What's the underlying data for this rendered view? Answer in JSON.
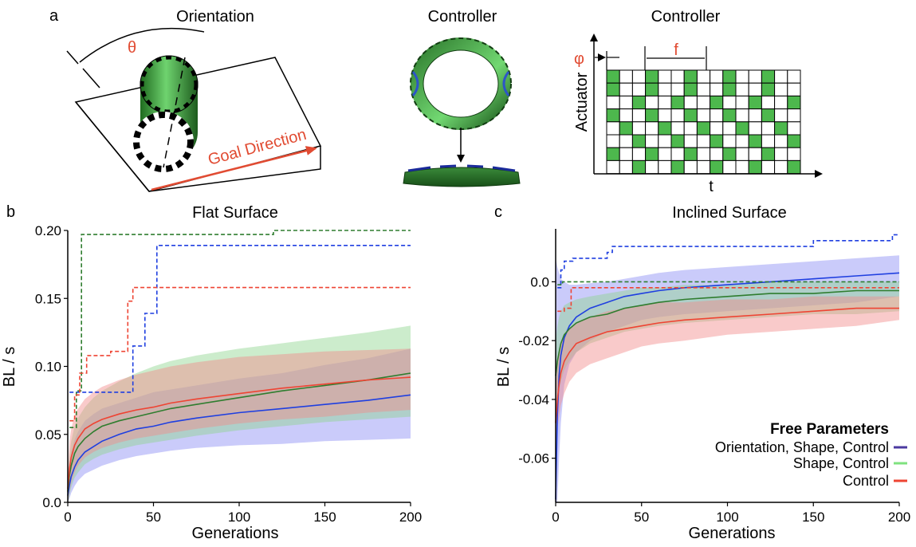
{
  "panel_a": {
    "label": "a",
    "orientation": {
      "title": "Orientation",
      "angle_symbol": "θ",
      "goal_label": "Goal Direction"
    },
    "controller_shape": {
      "title": "Controller"
    },
    "controller_grid": {
      "title": "Controller",
      "phase_symbol": "φ",
      "freq_symbol": "f",
      "ylabel": "Actuator",
      "xlabel": "t"
    }
  },
  "colors": {
    "blue": "#1f3fe0",
    "green": "#2f7d2f",
    "red": "#ee4433",
    "blue_band": "#8a8cf5",
    "green_band": "#8fd48f",
    "red_band": "#f28a8a",
    "grid_green": "#4db84d",
    "accent_red": "#e14b32",
    "legend_blue": "#4b3aa0",
    "legend_green": "#7fe27f",
    "legend_red": "#ee4433"
  },
  "legend": {
    "title": "Free Parameters",
    "entries": [
      "Orientation, Shape, Control",
      "Shape, Control",
      "Control"
    ]
  },
  "chart_data": [
    {
      "panel": "b",
      "type": "line",
      "title": "Flat Surface",
      "xlabel": "Generations",
      "ylabel": "BL / s",
      "xlim": [
        0,
        200
      ],
      "ylim": [
        0,
        0.2
      ],
      "xticks": [
        0,
        50,
        100,
        150,
        200
      ],
      "yticks": [
        0,
        0.05,
        0.1,
        0.15,
        0.2
      ],
      "ytick_labels": [
        "0.0",
        "0.05",
        "0.10",
        "0.15",
        "0.20"
      ],
      "series": [
        {
          "key": "blue",
          "kind": "mean",
          "x": [
            0,
            1,
            2,
            4,
            6,
            10,
            15,
            20,
            30,
            40,
            50,
            60,
            75,
            100,
            125,
            150,
            175,
            200
          ],
          "y": [
            0.005,
            0.013,
            0.019,
            0.026,
            0.031,
            0.037,
            0.041,
            0.045,
            0.05,
            0.054,
            0.056,
            0.059,
            0.062,
            0.066,
            0.069,
            0.072,
            0.075,
            0.079
          ],
          "lo": [
            0.0,
            0.003,
            0.007,
            0.012,
            0.016,
            0.021,
            0.024,
            0.027,
            0.031,
            0.034,
            0.036,
            0.038,
            0.04,
            0.042,
            0.043,
            0.045,
            0.046,
            0.047
          ],
          "hi": [
            0.012,
            0.028,
            0.037,
            0.046,
            0.052,
            0.06,
            0.065,
            0.069,
            0.073,
            0.077,
            0.081,
            0.083,
            0.086,
            0.091,
            0.095,
            0.101,
            0.106,
            0.113
          ]
        },
        {
          "key": "green",
          "kind": "mean",
          "x": [
            0,
            1,
            2,
            4,
            6,
            10,
            15,
            20,
            30,
            40,
            50,
            60,
            75,
            100,
            125,
            150,
            175,
            200
          ],
          "y": [
            0.008,
            0.02,
            0.027,
            0.036,
            0.041,
            0.047,
            0.052,
            0.056,
            0.06,
            0.063,
            0.066,
            0.069,
            0.072,
            0.077,
            0.082,
            0.086,
            0.09,
            0.095
          ],
          "lo": [
            0.0,
            0.005,
            0.011,
            0.018,
            0.022,
            0.028,
            0.032,
            0.035,
            0.039,
            0.042,
            0.044,
            0.046,
            0.049,
            0.053,
            0.056,
            0.059,
            0.061,
            0.063
          ],
          "hi": [
            0.016,
            0.035,
            0.045,
            0.056,
            0.062,
            0.07,
            0.077,
            0.082,
            0.089,
            0.095,
            0.1,
            0.104,
            0.108,
            0.113,
            0.117,
            0.121,
            0.125,
            0.13
          ]
        },
        {
          "key": "red",
          "kind": "mean",
          "x": [
            0,
            1,
            2,
            4,
            6,
            10,
            15,
            20,
            30,
            40,
            50,
            60,
            75,
            100,
            125,
            150,
            175,
            200
          ],
          "y": [
            0.01,
            0.025,
            0.033,
            0.042,
            0.047,
            0.054,
            0.058,
            0.061,
            0.065,
            0.068,
            0.07,
            0.073,
            0.076,
            0.08,
            0.084,
            0.087,
            0.09,
            0.092
          ],
          "lo": [
            0.0,
            0.008,
            0.014,
            0.022,
            0.027,
            0.033,
            0.037,
            0.04,
            0.044,
            0.047,
            0.049,
            0.051,
            0.054,
            0.058,
            0.061,
            0.063,
            0.066,
            0.068
          ],
          "hi": [
            0.02,
            0.045,
            0.054,
            0.064,
            0.069,
            0.076,
            0.081,
            0.085,
            0.09,
            0.094,
            0.097,
            0.1,
            0.103,
            0.107,
            0.109,
            0.111,
            0.112,
            0.113
          ]
        },
        {
          "key": "blue",
          "kind": "max",
          "step": true,
          "x": [
            1,
            38,
            38,
            45,
            45,
            52,
            52,
            200
          ],
          "y": [
            0.081,
            0.081,
            0.115,
            0.115,
            0.139,
            0.139,
            0.189,
            0.189
          ]
        },
        {
          "key": "green",
          "kind": "max",
          "step": true,
          "x": [
            1,
            5,
            5,
            8,
            8,
            120,
            120,
            200
          ],
          "y": [
            0.055,
            0.055,
            0.082,
            0.082,
            0.197,
            0.197,
            0.2,
            0.2
          ]
        },
        {
          "key": "red",
          "kind": "max",
          "step": true,
          "x": [
            1,
            4,
            4,
            7,
            7,
            11,
            11,
            25,
            25,
            35,
            35,
            38,
            38,
            200
          ],
          "y": [
            0.06,
            0.06,
            0.079,
            0.079,
            0.095,
            0.095,
            0.108,
            0.108,
            0.111,
            0.111,
            0.148,
            0.148,
            0.158,
            0.158
          ]
        }
      ]
    },
    {
      "panel": "c",
      "type": "line",
      "title": "Inclined Surface",
      "xlabel": "Generations",
      "ylabel": "BL / s",
      "xlim": [
        0,
        200
      ],
      "ylim": [
        -0.075,
        0.018
      ],
      "xticks": [
        0,
        50,
        100,
        150,
        200
      ],
      "yticks": [
        -0.06,
        -0.04,
        -0.02,
        0.0
      ],
      "ytick_labels": [
        "-0.06",
        "-0.04",
        "-0.02",
        "0.0"
      ],
      "series": [
        {
          "key": "blue",
          "kind": "mean",
          "x": [
            0,
            1,
            2,
            3,
            5,
            8,
            12,
            20,
            30,
            40,
            50,
            60,
            75,
            100,
            125,
            150,
            175,
            200
          ],
          "y": [
            -0.074,
            -0.045,
            -0.032,
            -0.025,
            -0.019,
            -0.015,
            -0.012,
            -0.009,
            -0.007,
            -0.005,
            -0.004,
            -0.003,
            -0.002,
            -0.001,
            0.0,
            0.001,
            0.002,
            0.003
          ],
          "lo": [
            -0.075,
            -0.075,
            -0.06,
            -0.048,
            -0.035,
            -0.028,
            -0.024,
            -0.02,
            -0.017,
            -0.015,
            -0.013,
            -0.012,
            -0.011,
            -0.01,
            -0.009,
            -0.008,
            -0.007,
            -0.005
          ],
          "hi": [
            0.008,
            0.005,
            0.003,
            0.001,
            0.0,
            -0.001,
            -0.001,
            -0.0005,
            0.0,
            0.001,
            0.002,
            0.003,
            0.004,
            0.005,
            0.006,
            0.007,
            0.008,
            0.009
          ]
        },
        {
          "key": "green",
          "kind": "mean",
          "x": [
            0,
            1,
            2,
            3,
            5,
            8,
            12,
            20,
            30,
            40,
            50,
            60,
            75,
            100,
            125,
            150,
            175,
            200
          ],
          "y": [
            -0.032,
            -0.027,
            -0.024,
            -0.021,
            -0.018,
            -0.016,
            -0.014,
            -0.012,
            -0.011,
            -0.009,
            -0.008,
            -0.007,
            -0.006,
            -0.005,
            -0.004,
            -0.004,
            -0.003,
            -0.003
          ],
          "lo": [
            -0.045,
            -0.04,
            -0.037,
            -0.034,
            -0.03,
            -0.027,
            -0.024,
            -0.021,
            -0.019,
            -0.017,
            -0.016,
            -0.015,
            -0.014,
            -0.013,
            -0.012,
            -0.011,
            -0.011,
            -0.01
          ],
          "hi": [
            -0.02,
            -0.015,
            -0.012,
            -0.01,
            -0.008,
            -0.007,
            -0.006,
            -0.005,
            -0.004,
            -0.003,
            -0.002,
            -0.002,
            -0.001,
            -0.001,
            0.0,
            0.0,
            0.0,
            0.0
          ]
        },
        {
          "key": "red",
          "kind": "mean",
          "x": [
            0,
            1,
            2,
            3,
            5,
            8,
            12,
            20,
            30,
            40,
            50,
            60,
            75,
            100,
            125,
            150,
            175,
            200
          ],
          "y": [
            -0.048,
            -0.04,
            -0.035,
            -0.031,
            -0.027,
            -0.024,
            -0.021,
            -0.019,
            -0.017,
            -0.016,
            -0.015,
            -0.014,
            -0.013,
            -0.012,
            -0.011,
            -0.01,
            -0.009,
            -0.009
          ],
          "lo": [
            -0.055,
            -0.05,
            -0.046,
            -0.042,
            -0.038,
            -0.034,
            -0.031,
            -0.028,
            -0.026,
            -0.024,
            -0.022,
            -0.021,
            -0.02,
            -0.018,
            -0.017,
            -0.016,
            -0.015,
            -0.013
          ],
          "hi": [
            -0.035,
            -0.028,
            -0.024,
            -0.021,
            -0.018,
            -0.016,
            -0.014,
            -0.012,
            -0.01,
            -0.009,
            -0.008,
            -0.007,
            -0.007,
            -0.006,
            -0.006,
            -0.005,
            -0.005,
            -0.005
          ]
        },
        {
          "key": "blue",
          "kind": "max",
          "step": true,
          "x": [
            1,
            3,
            3,
            5,
            5,
            10,
            10,
            30,
            30,
            33,
            33,
            150,
            150,
            196,
            196,
            200
          ],
          "y": [
            -0.002,
            -0.002,
            0.004,
            0.004,
            0.007,
            0.007,
            0.008,
            0.008,
            0.01,
            0.01,
            0.012,
            0.012,
            0.014,
            0.014,
            0.016,
            0.016
          ]
        },
        {
          "key": "green",
          "kind": "max",
          "step": true,
          "x": [
            1,
            4,
            4,
            200
          ],
          "y": [
            -0.001,
            -0.001,
            0.0,
            0.0
          ]
        },
        {
          "key": "red",
          "kind": "max",
          "step": true,
          "x": [
            1,
            5,
            5,
            9,
            9,
            200
          ],
          "y": [
            -0.01,
            -0.01,
            -0.009,
            -0.009,
            -0.002,
            -0.002
          ]
        }
      ]
    }
  ]
}
